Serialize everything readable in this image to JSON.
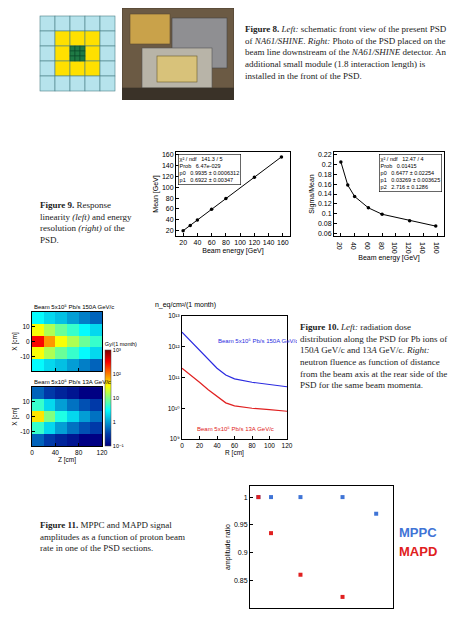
{
  "document": {
    "captions": [
      {
        "label": "Figure 8.",
        "parts": [
          {
            "text": "Left:",
            "italic": true
          },
          {
            "text": " schematic front view of the present PSD of "
          },
          {
            "text": "NA61/SHINE",
            "italic": true
          },
          {
            "text": ". "
          },
          {
            "text": "Right:",
            "italic": true
          },
          {
            "text": " Photo of the PSD placed on the beam line downstream of the "
          },
          {
            "text": "NA61/SHINE",
            "italic": true
          },
          {
            "text": " detector. An additional small module (1.8 interaction length) is installed in the front of the PSD."
          }
        ]
      },
      {
        "label": "Figure 9.",
        "parts": [
          {
            "text": "Response linearity "
          },
          {
            "text": "(left)",
            "italic": true
          },
          {
            "text": " and energy resolution "
          },
          {
            "text": "(right)",
            "italic": true
          },
          {
            "text": " of the PSD."
          }
        ]
      },
      {
        "label": "Figure 10.",
        "parts": [
          {
            "text": "Left:",
            "italic": true
          },
          {
            "text": " radiation dose distribution along the PSD for Pb ions of 150"
          },
          {
            "text": "A",
            "italic": true
          },
          {
            "text": " GeV/c and 13"
          },
          {
            "text": "A",
            "italic": true
          },
          {
            "text": " GeV/c. "
          },
          {
            "text": "Right:",
            "italic": true
          },
          {
            "text": " neutron fluence as function of distance from the beam axis at the rear side of the PSD for the same beam momenta."
          }
        ]
      },
      {
        "label": "Figure 11.",
        "parts": [
          {
            "text": "MPPC and MAPD signal amplitudes as a function of proton beam rate in one of the PSD sections."
          }
        ]
      }
    ]
  },
  "chart_data": [
    {
      "type": "line",
      "x_label": "Beam energy [GeV]",
      "y_label": "Mean [GeV]",
      "x": [
        20,
        30,
        40,
        60,
        80,
        120,
        158
      ],
      "series": [
        {
          "color": "#000000",
          "marker": "circle",
          "line_style": "solid",
          "values": [
            19.8,
            29.6,
            39.5,
            59.3,
            79,
            118.5,
            156
          ]
        }
      ],
      "xlim": [
        10,
        170
      ],
      "xticks": [
        20,
        40,
        60,
        80,
        100,
        120,
        140,
        160
      ],
      "ylim": [
        10,
        165
      ],
      "yticks": [
        20,
        40,
        60,
        80,
        100,
        120,
        140,
        160
      ],
      "annotations": [
        [
          "χ² / ndf",
          "141.3 / 5"
        ],
        [
          "Prob",
          "6.47e-029"
        ],
        [
          "p0",
          "0.9935 ± 0.0006312"
        ],
        [
          "p1",
          "0.6922 ± 0.00347"
        ]
      ]
    },
    {
      "type": "line",
      "x_label": "Beam energy [GeV]",
      "y_label": "Sigma/Mean",
      "x": [
        20,
        30,
        40,
        60,
        80,
        120,
        158
      ],
      "series": [
        {
          "color": "#000000",
          "marker": "circle",
          "line_style": "solid",
          "values": [
            0.205,
            0.158,
            0.135,
            0.112,
            0.099,
            0.086,
            0.075
          ]
        }
      ],
      "xlim": [
        10,
        170
      ],
      "xticks": [
        20,
        40,
        60,
        80,
        100,
        120,
        140,
        160
      ],
      "ylim": [
        0.055,
        0.225
      ],
      "yticks": [
        0.06,
        0.08,
        0.1,
        0.12,
        0.14,
        0.16,
        0.18,
        0.2,
        0.22
      ],
      "annotations": [
        [
          "χ² / ndf",
          "12.47 / 4"
        ],
        [
          "Prob",
          "0.01415"
        ],
        [
          "p0",
          "0.6477 ± 0.02254"
        ],
        [
          "p1",
          "0.03269 ± 0.003625"
        ],
        [
          "p2",
          "2.716 ± 0.1286"
        ]
      ]
    },
    {
      "type": "heatmap",
      "log": true,
      "x_label": "Z [cm]",
      "y_label": "X [cm]",
      "x": [
        10,
        30,
        50,
        70,
        90,
        110
      ],
      "y": [
        -16,
        -8,
        0,
        8,
        16
      ],
      "xlim": [
        0,
        120
      ],
      "xticks": [
        0,
        40,
        80,
        120
      ],
      "ylim": [
        -20,
        20
      ],
      "yticks": [
        -10,
        0,
        10
      ],
      "panels": [
        {
          "title": "Beam 5x10⁵ Pb/s 150A GeV/c",
          "cells": [
            [
              3,
              2,
              1.5,
              1,
              0.7,
              0.5
            ],
            [
              30,
              15,
              8,
              5,
              3,
              2
            ],
            [
              300,
              80,
              30,
              15,
              8,
              5
            ],
            [
              30,
              15,
              8,
              5,
              3,
              2
            ],
            [
              3,
              2,
              1.5,
              1,
              0.7,
              0.5
            ]
          ]
        },
        {
          "title": "Beam 5x10⁵ Pb/s 13A GeV/c",
          "cells": [
            [
              0.5,
              0.3,
              0.2,
              0.15,
              0.1,
              0.1
            ],
            [
              5,
              2,
              1,
              0.6,
              0.4,
              0.3
            ],
            [
              40,
              10,
              4,
              2,
              1,
              0.6
            ],
            [
              5,
              2,
              1,
              0.6,
              0.4,
              0.3
            ],
            [
              0.5,
              0.3,
              0.2,
              0.15,
              0.1,
              0.1
            ]
          ]
        }
      ],
      "colorbar": {
        "title": "Gy/(1 month)",
        "range": [
          0.1,
          1000
        ],
        "ticks": [
          {
            "value": 0.1,
            "label": "10⁻¹"
          },
          1,
          10,
          {
            "value": 100,
            "label": "10²"
          },
          {
            "value": 1000,
            "label": "10³"
          }
        ]
      }
    },
    {
      "type": "line",
      "log": "y",
      "title": "n_eq/cm²/(1 month)",
      "x_label": "R [cm]",
      "x": [
        0,
        10,
        20,
        30,
        40,
        50,
        60,
        80,
        100,
        120
      ],
      "series": [
        {
          "name": "Beam 5x10⁵ Pb/s 150A GeV/c",
          "color": "#2a2ae0",
          "values": [
            3000000000000.0,
            1500000000000.0,
            800000000000.0,
            400000000000.0,
            200000000000.0,
            120000000000.0,
            90000000000.0,
            70000000000.0,
            60000000000.0,
            50000000000.0
          ]
        },
        {
          "name": "Beam 5x10⁵ Pb/s 13A GeV/c",
          "color": "#e02020",
          "values": [
            200000000000.0,
            120000000000.0,
            70000000000.0,
            40000000000.0,
            25000000000.0,
            15000000000.0,
            12000000000.0,
            10000000000.0,
            9000000000.0,
            8000000000.0
          ]
        }
      ],
      "xlim": [
        0,
        120
      ],
      "xticks": [
        0,
        20,
        40,
        60,
        80,
        100,
        120
      ],
      "ylim": [
        1000000000.0,
        10000000000000.0
      ],
      "yticks": [
        {
          "value": 1000000000.0,
          "label": "10⁹"
        },
        {
          "value": 10000000000.0,
          "label": "10¹⁰"
        },
        {
          "value": 100000000000.0,
          "label": "10¹¹"
        },
        {
          "value": 1000000000000.0,
          "label": "10¹²"
        },
        {
          "value": 10000000000000.0,
          "label": "10¹³"
        }
      ]
    },
    {
      "type": "scatter",
      "y_label": "amplitude ratio",
      "tick_labels": "y",
      "legend": "right",
      "series": [
        {
          "name": "MPPC",
          "color": "#3f74d6",
          "marker": "square",
          "x": [
            0,
            0.3,
            1,
            2,
            2.8
          ],
          "values": [
            1,
            1,
            1,
            1,
            0.97
          ]
        },
        {
          "name": "MAPD",
          "color": "#e02020",
          "marker": "square",
          "x": [
            0,
            0.3,
            1,
            2
          ],
          "values": [
            1,
            0.935,
            0.86,
            0.82
          ]
        }
      ],
      "xlim": [
        -0.2,
        3.2
      ],
      "ylim": [
        0.8,
        1.02
      ],
      "yticks": [
        0.85,
        0.9,
        0.95,
        1
      ]
    }
  ]
}
